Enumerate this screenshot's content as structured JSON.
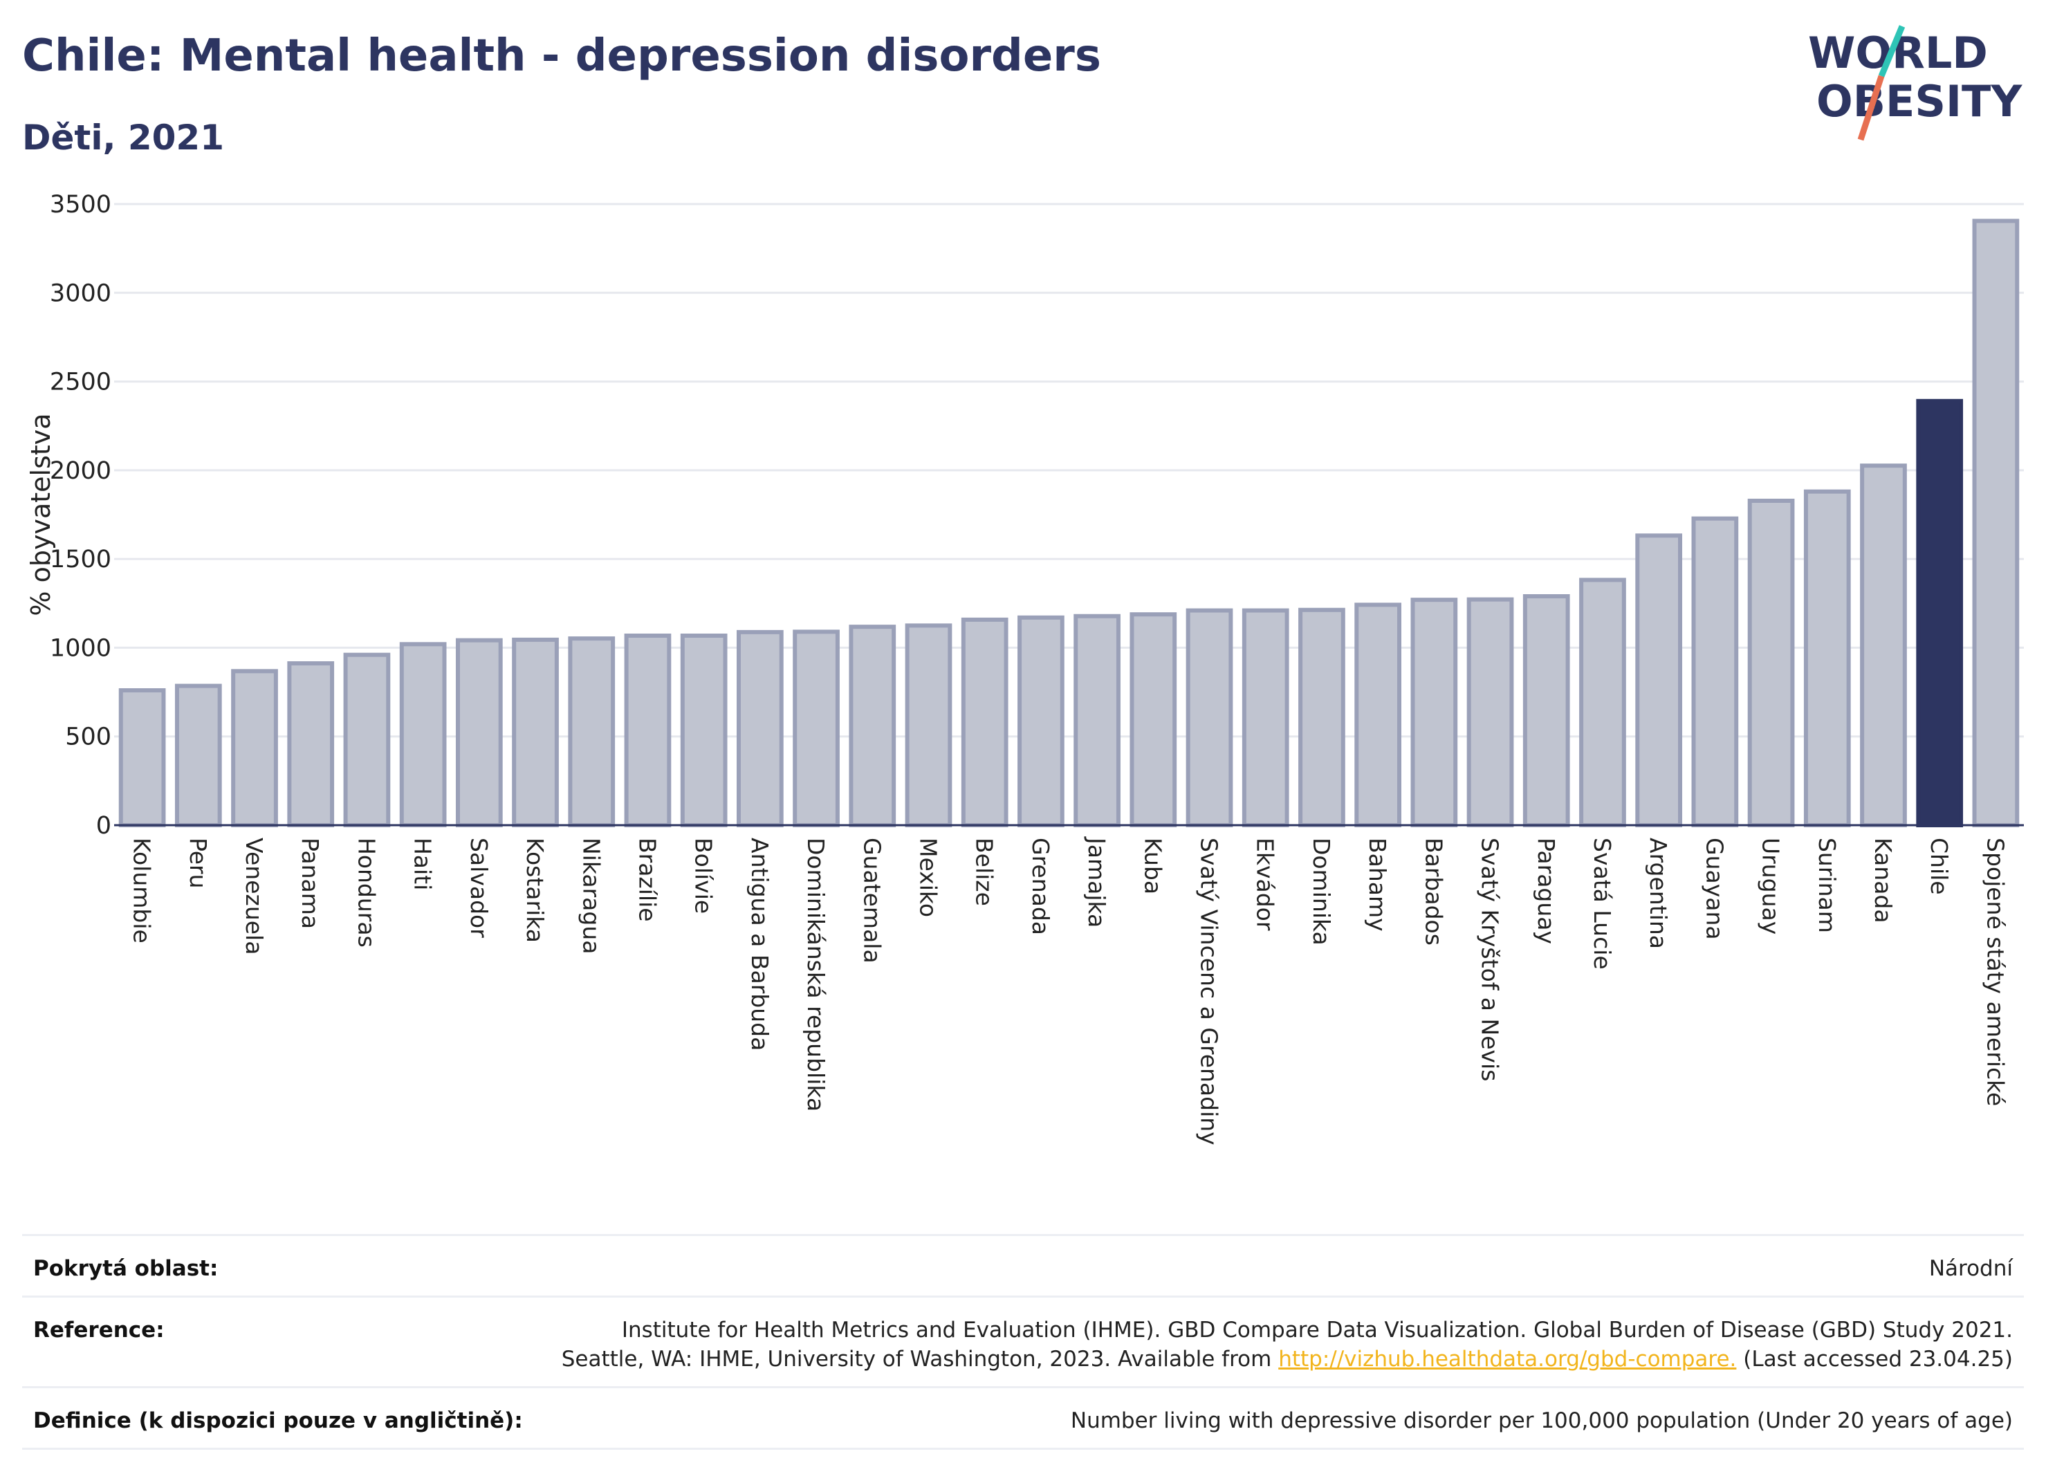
{
  "header": {
    "title": "Chile: Mental health - depression disorders",
    "subtitle": "Děti, 2021"
  },
  "logo": {
    "line1": "WORLD",
    "line2": "OBESITY"
  },
  "chart_data": {
    "type": "bar",
    "title": "Chile: Mental health - depression disorders",
    "subtitle": "Děti, 2021",
    "ylabel": "% obyvatelstva",
    "xlabel": "",
    "ylim": [
      0,
      3500
    ],
    "yticks": [
      0,
      500,
      1000,
      1500,
      2000,
      2500,
      3000,
      3500
    ],
    "grid": true,
    "highlight": "Chile",
    "colors": {
      "bar": "#c0c4d0",
      "bar_border": "#9aa0b8",
      "highlight": "#2d3561",
      "grid": "#e6e8ee",
      "axis": "#2d3561"
    },
    "categories": [
      "Kolumbie",
      "Peru",
      "Venezuela",
      "Panama",
      "Honduras",
      "Haiti",
      "Salvador",
      "Kostarika",
      "Nikaragua",
      "Brazílie",
      "Bolívie",
      "Antigua a Barbuda",
      "Dominikánská republika",
      "Guatemala",
      "Mexiko",
      "Belize",
      "Grenada",
      "Jamajka",
      "Kuba",
      "Svatý Vincenc a Grenadiny",
      "Ekvádor",
      "Dominika",
      "Bahamy",
      "Barbados",
      "Svatý Kryštof a Nevis",
      "Paraguay",
      "Svatá Lucie",
      "Argentina",
      "Guayana",
      "Uruguay",
      "Surinam",
      "Kanada",
      "Chile",
      "Spojené státy americké"
    ],
    "values": [
      760,
      785,
      868,
      912,
      960,
      1020,
      1042,
      1045,
      1052,
      1068,
      1068,
      1088,
      1090,
      1118,
      1125,
      1158,
      1170,
      1178,
      1188,
      1210,
      1210,
      1213,
      1242,
      1270,
      1272,
      1290,
      1382,
      1632,
      1728,
      1828,
      1880,
      2026,
      2390,
      3405
    ]
  },
  "footer": {
    "coverage_label": "Pokrytá oblast:",
    "coverage_value": "Národní",
    "reference_label": "Reference:",
    "reference_line1": "Institute for Health Metrics and Evaluation (IHME). GBD Compare Data Visualization. Global Burden of Disease (GBD) Study 2021.",
    "reference_line2_pre": "Seattle, WA: IHME, University of Washington, 2023. Available from ",
    "reference_link": "http://vizhub.healthdata.org/gbd-compare.",
    "reference_line2_post": " (Last accessed 23.04.25)",
    "definition_label": "Definice (k dispozici pouze v angličtině):",
    "definition_value": "Number living with depressive disorder per 100,000 population (Under 20 years of age)"
  }
}
